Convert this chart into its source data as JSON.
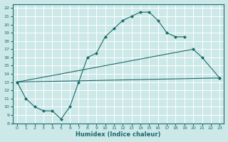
{
  "xlabel": "Humidex (Indice chaleur)",
  "xlim": [
    -0.5,
    23.5
  ],
  "ylim": [
    8,
    22.5
  ],
  "xticks": [
    0,
    1,
    2,
    3,
    4,
    5,
    6,
    7,
    8,
    9,
    10,
    11,
    12,
    13,
    14,
    15,
    16,
    17,
    18,
    19,
    20,
    21,
    22,
    23
  ],
  "yticks": [
    8,
    9,
    10,
    11,
    12,
    13,
    14,
    15,
    16,
    17,
    18,
    19,
    20,
    21,
    22
  ],
  "bg_color": "#cde8e8",
  "line_color": "#1a6b6b",
  "grid_color": "#ffffff",
  "line1_x": [
    0,
    1,
    2,
    3,
    4,
    5,
    6,
    7,
    8,
    9,
    10,
    11,
    12,
    13,
    14,
    15,
    16,
    17,
    18,
    19
  ],
  "line1_y": [
    13,
    11,
    10,
    9.5,
    9.5,
    8.5,
    10,
    13,
    16,
    16.5,
    18.5,
    19.5,
    20.5,
    21,
    21.5,
    21.5,
    20.5,
    19,
    18.5,
    18.5
  ],
  "line2_x": [
    0,
    20,
    21,
    23
  ],
  "line2_y": [
    13,
    17,
    16,
    13.5
  ],
  "line3_x": [
    0,
    23
  ],
  "line3_y": [
    13,
    13.5
  ]
}
